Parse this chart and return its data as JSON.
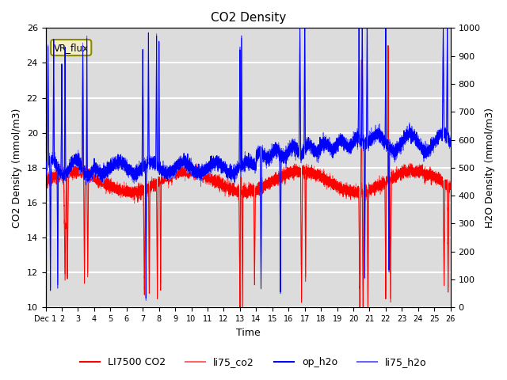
{
  "title": "CO2 Density",
  "xlabel": "Time",
  "ylabel_left": "CO2 Density (mmol/m3)",
  "ylabel_right": "H2O Density (mmol/m3)",
  "ylim_left": [
    10,
    26
  ],
  "ylim_right": [
    0,
    1000
  ],
  "annotation_text": "VR_flux",
  "colors": {
    "LI7500_CO2": "#ff0000",
    "li75_co2": "#ff6666",
    "op_h2o": "#0000ff",
    "li75_h2o": "#6666ff"
  },
  "background_color": "#dcdcdc",
  "grid_color": "#ffffff"
}
